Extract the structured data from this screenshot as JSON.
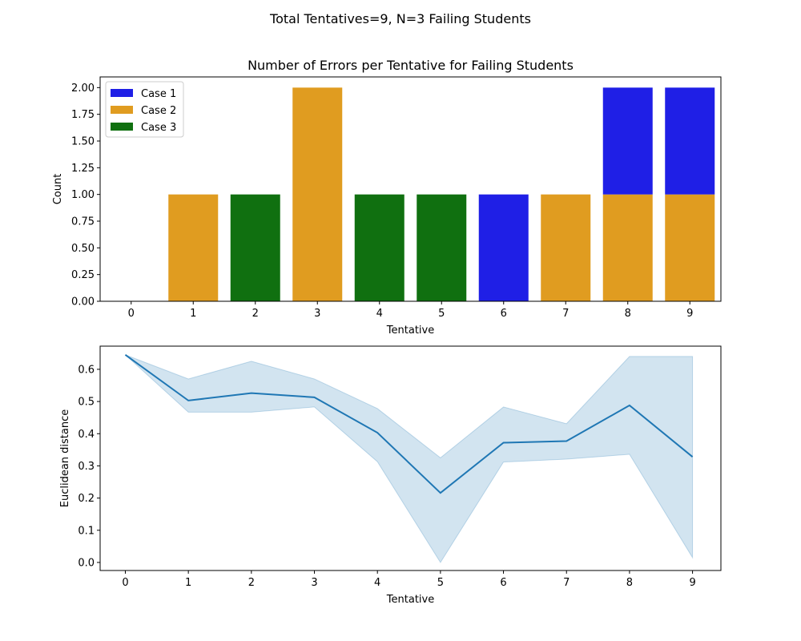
{
  "figure": {
    "suptitle": "Total Tentatives=9, N=3 Failing Students"
  },
  "chart_data": [
    {
      "type": "bar",
      "stacked": true,
      "title": "Number of Errors per Tentative for Failing Students",
      "xlabel": "Tentative",
      "ylabel": "Count",
      "categories": [
        "0",
        "1",
        "2",
        "3",
        "4",
        "5",
        "6",
        "7",
        "8",
        "9"
      ],
      "ylim": [
        0,
        2.1
      ],
      "yticks": [
        "0.00",
        "0.25",
        "0.50",
        "0.75",
        "1.00",
        "1.25",
        "1.50",
        "1.75",
        "2.00"
      ],
      "legend_position": "top-left",
      "stack_order": [
        "Case 2",
        "Case 3",
        "Case 1"
      ],
      "series": [
        {
          "name": "Case 1",
          "color": "#1f1fe6",
          "values": [
            0,
            0,
            0,
            0,
            0,
            0,
            1,
            0,
            1,
            1
          ]
        },
        {
          "name": "Case 2",
          "color": "#e09c20",
          "values": [
            0,
            1,
            0,
            2,
            0,
            0,
            0,
            1,
            1,
            1
          ]
        },
        {
          "name": "Case 3",
          "color": "#107010",
          "values": [
            0,
            0,
            1,
            0,
            1,
            1,
            0,
            0,
            0,
            0
          ]
        }
      ]
    },
    {
      "type": "line",
      "title": "",
      "xlabel": "Tentative",
      "ylabel": "Euclidean distance",
      "x": [
        0,
        1,
        2,
        3,
        4,
        5,
        6,
        7,
        8,
        9
      ],
      "xlim": [
        -0.4,
        9.45
      ],
      "ylim": [
        -0.025,
        0.672
      ],
      "yticks": [
        "0.0",
        "0.1",
        "0.2",
        "0.3",
        "0.4",
        "0.5",
        "0.6"
      ],
      "line_color": "#1f77b4",
      "band_color": "#1f77b4",
      "series": [
        {
          "values": [
            0.645,
            0.503,
            0.526,
            0.513,
            0.403,
            0.216,
            0.372,
            0.377,
            0.488,
            0.328
          ],
          "band_lower": [
            0.645,
            0.467,
            0.467,
            0.483,
            0.313,
            0.0,
            0.312,
            0.321,
            0.336,
            0.015
          ],
          "band_upper": [
            0.645,
            0.57,
            0.625,
            0.57,
            0.478,
            0.325,
            0.483,
            0.431,
            0.64,
            0.64
          ]
        }
      ]
    }
  ]
}
